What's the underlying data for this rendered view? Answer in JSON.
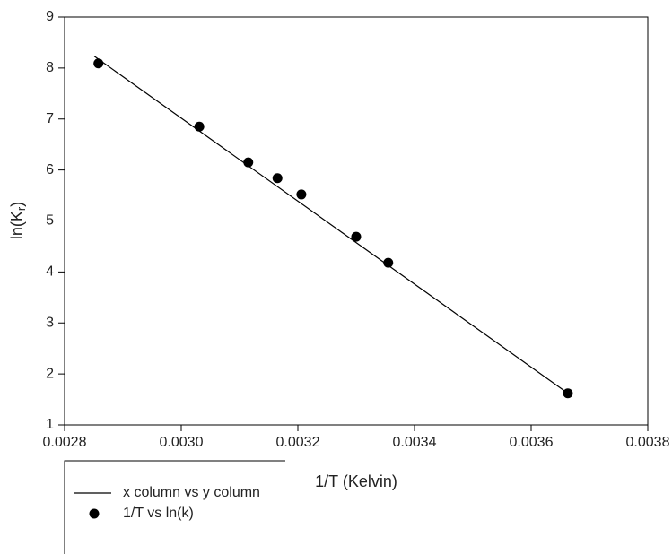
{
  "chart_data": {
    "type": "scatter",
    "xlabel": "1/T (Kelvin)",
    "ylabel_parts": [
      "ln(K",
      "r",
      ")"
    ],
    "xlim": [
      0.0028,
      0.0038
    ],
    "xticks": [
      0.0028,
      {
        "value": 0.003,
        "label": "0.0030"
      },
      0.0032,
      0.0034,
      0.0036,
      0.0038
    ],
    "ylim": [
      1,
      9
    ],
    "yticks": [
      1,
      2,
      3,
      4,
      5,
      6,
      7,
      8,
      9
    ],
    "series": [
      {
        "name": "x column vs y column",
        "color": "#000000",
        "mode": "line",
        "x": [
          0.002851,
          0.003668
        ],
        "values": [
          8.23,
          1.58
        ]
      },
      {
        "name": "1/T vs ln(k)",
        "color": "#000000",
        "mode": "marker",
        "x": [
          0.002858,
          0.003031,
          0.003115,
          0.003165,
          0.003206,
          0.0033,
          0.003355,
          0.003663
        ],
        "values": [
          8.09,
          6.85,
          6.15,
          5.84,
          5.52,
          4.69,
          4.18,
          1.62
        ]
      }
    ]
  }
}
